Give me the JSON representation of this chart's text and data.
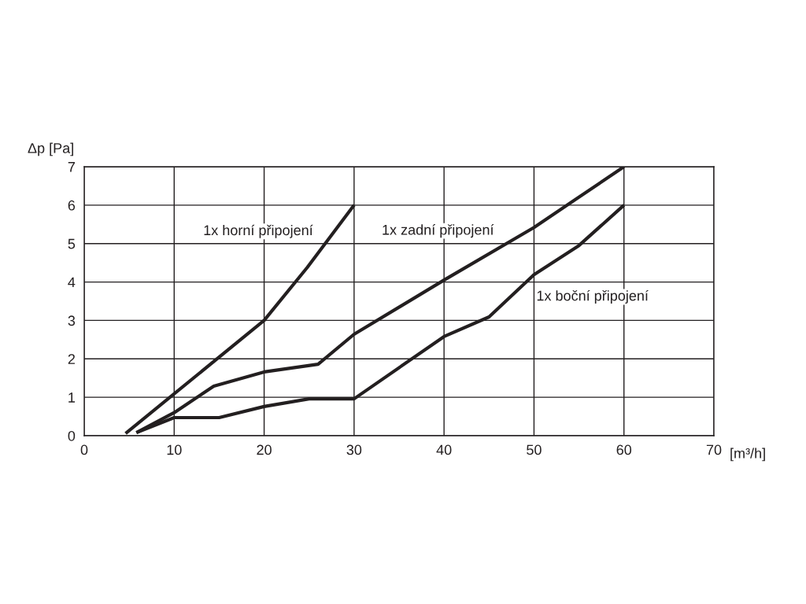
{
  "chart_data": {
    "type": "line",
    "xlabel": "[m³/h]",
    "ylabel": "Δp [Pa]",
    "xlim": [
      0,
      70
    ],
    "ylim": [
      0,
      7
    ],
    "xticks": [
      0,
      10,
      20,
      30,
      40,
      50,
      60,
      70
    ],
    "yticks": [
      0,
      1,
      2,
      3,
      4,
      5,
      6,
      7
    ],
    "grid": true,
    "marker": "none",
    "line_style": "solid",
    "series": [
      {
        "name": "1x horní připojení",
        "color": "#231f20",
        "x": [
          4.6,
          20,
          24.8,
          30
        ],
        "values": [
          0.06,
          3,
          4.38,
          6
        ]
      },
      {
        "name": "1x zadní připojení",
        "color": "#231f20",
        "x": [
          5.8,
          10,
          14.4,
          20,
          26,
          30,
          40,
          50,
          60
        ],
        "values": [
          0.08,
          0.6,
          1.29,
          1.66,
          1.86,
          2.64,
          4.05,
          5.42,
          7
        ]
      },
      {
        "name": "1x boční připojení",
        "color": "#231f20",
        "x": [
          5.8,
          10,
          15,
          20,
          25,
          30,
          40,
          45,
          50,
          55,
          60
        ],
        "values": [
          0.08,
          0.47,
          0.47,
          0.76,
          0.96,
          0.96,
          2.58,
          3.09,
          4.19,
          4.95,
          6
        ]
      }
    ]
  }
}
